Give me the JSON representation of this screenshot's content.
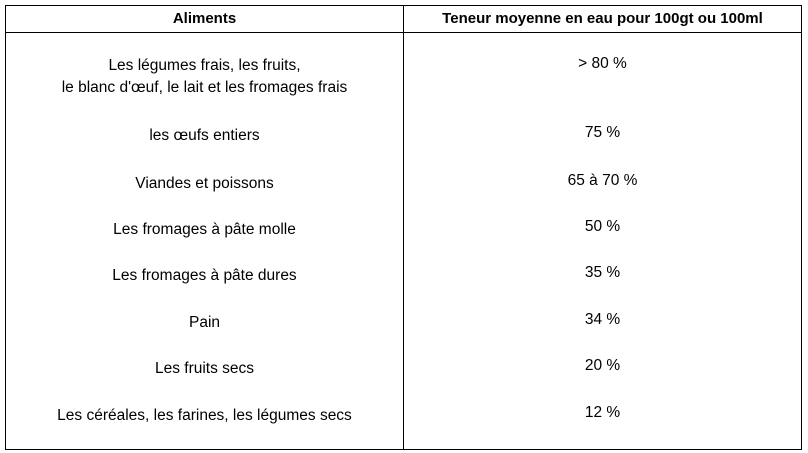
{
  "table": {
    "headers": [
      "Aliments",
      "Teneur moyenne en eau pour 100gt ou 100ml"
    ],
    "rows": [
      {
        "food": "Les légumes frais, les fruits,\nle blanc d'œuf, le lait et les fromages frais",
        "water": "> 80 %"
      },
      {
        "food": "les œufs entiers",
        "water": "75 %"
      },
      {
        "food": "Viandes et poissons",
        "water": "65 à 70 %"
      },
      {
        "food": "Les fromages à pâte molle",
        "water": "50 %"
      },
      {
        "food": "Les fromages à pâte dures",
        "water": "35 %"
      },
      {
        "food": "Pain",
        "water": "34 %"
      },
      {
        "food": "Les fruits secs",
        "water": "20 %"
      },
      {
        "food": "Les céréales,  les farines, les  légumes secs",
        "water": "12 %"
      }
    ]
  }
}
